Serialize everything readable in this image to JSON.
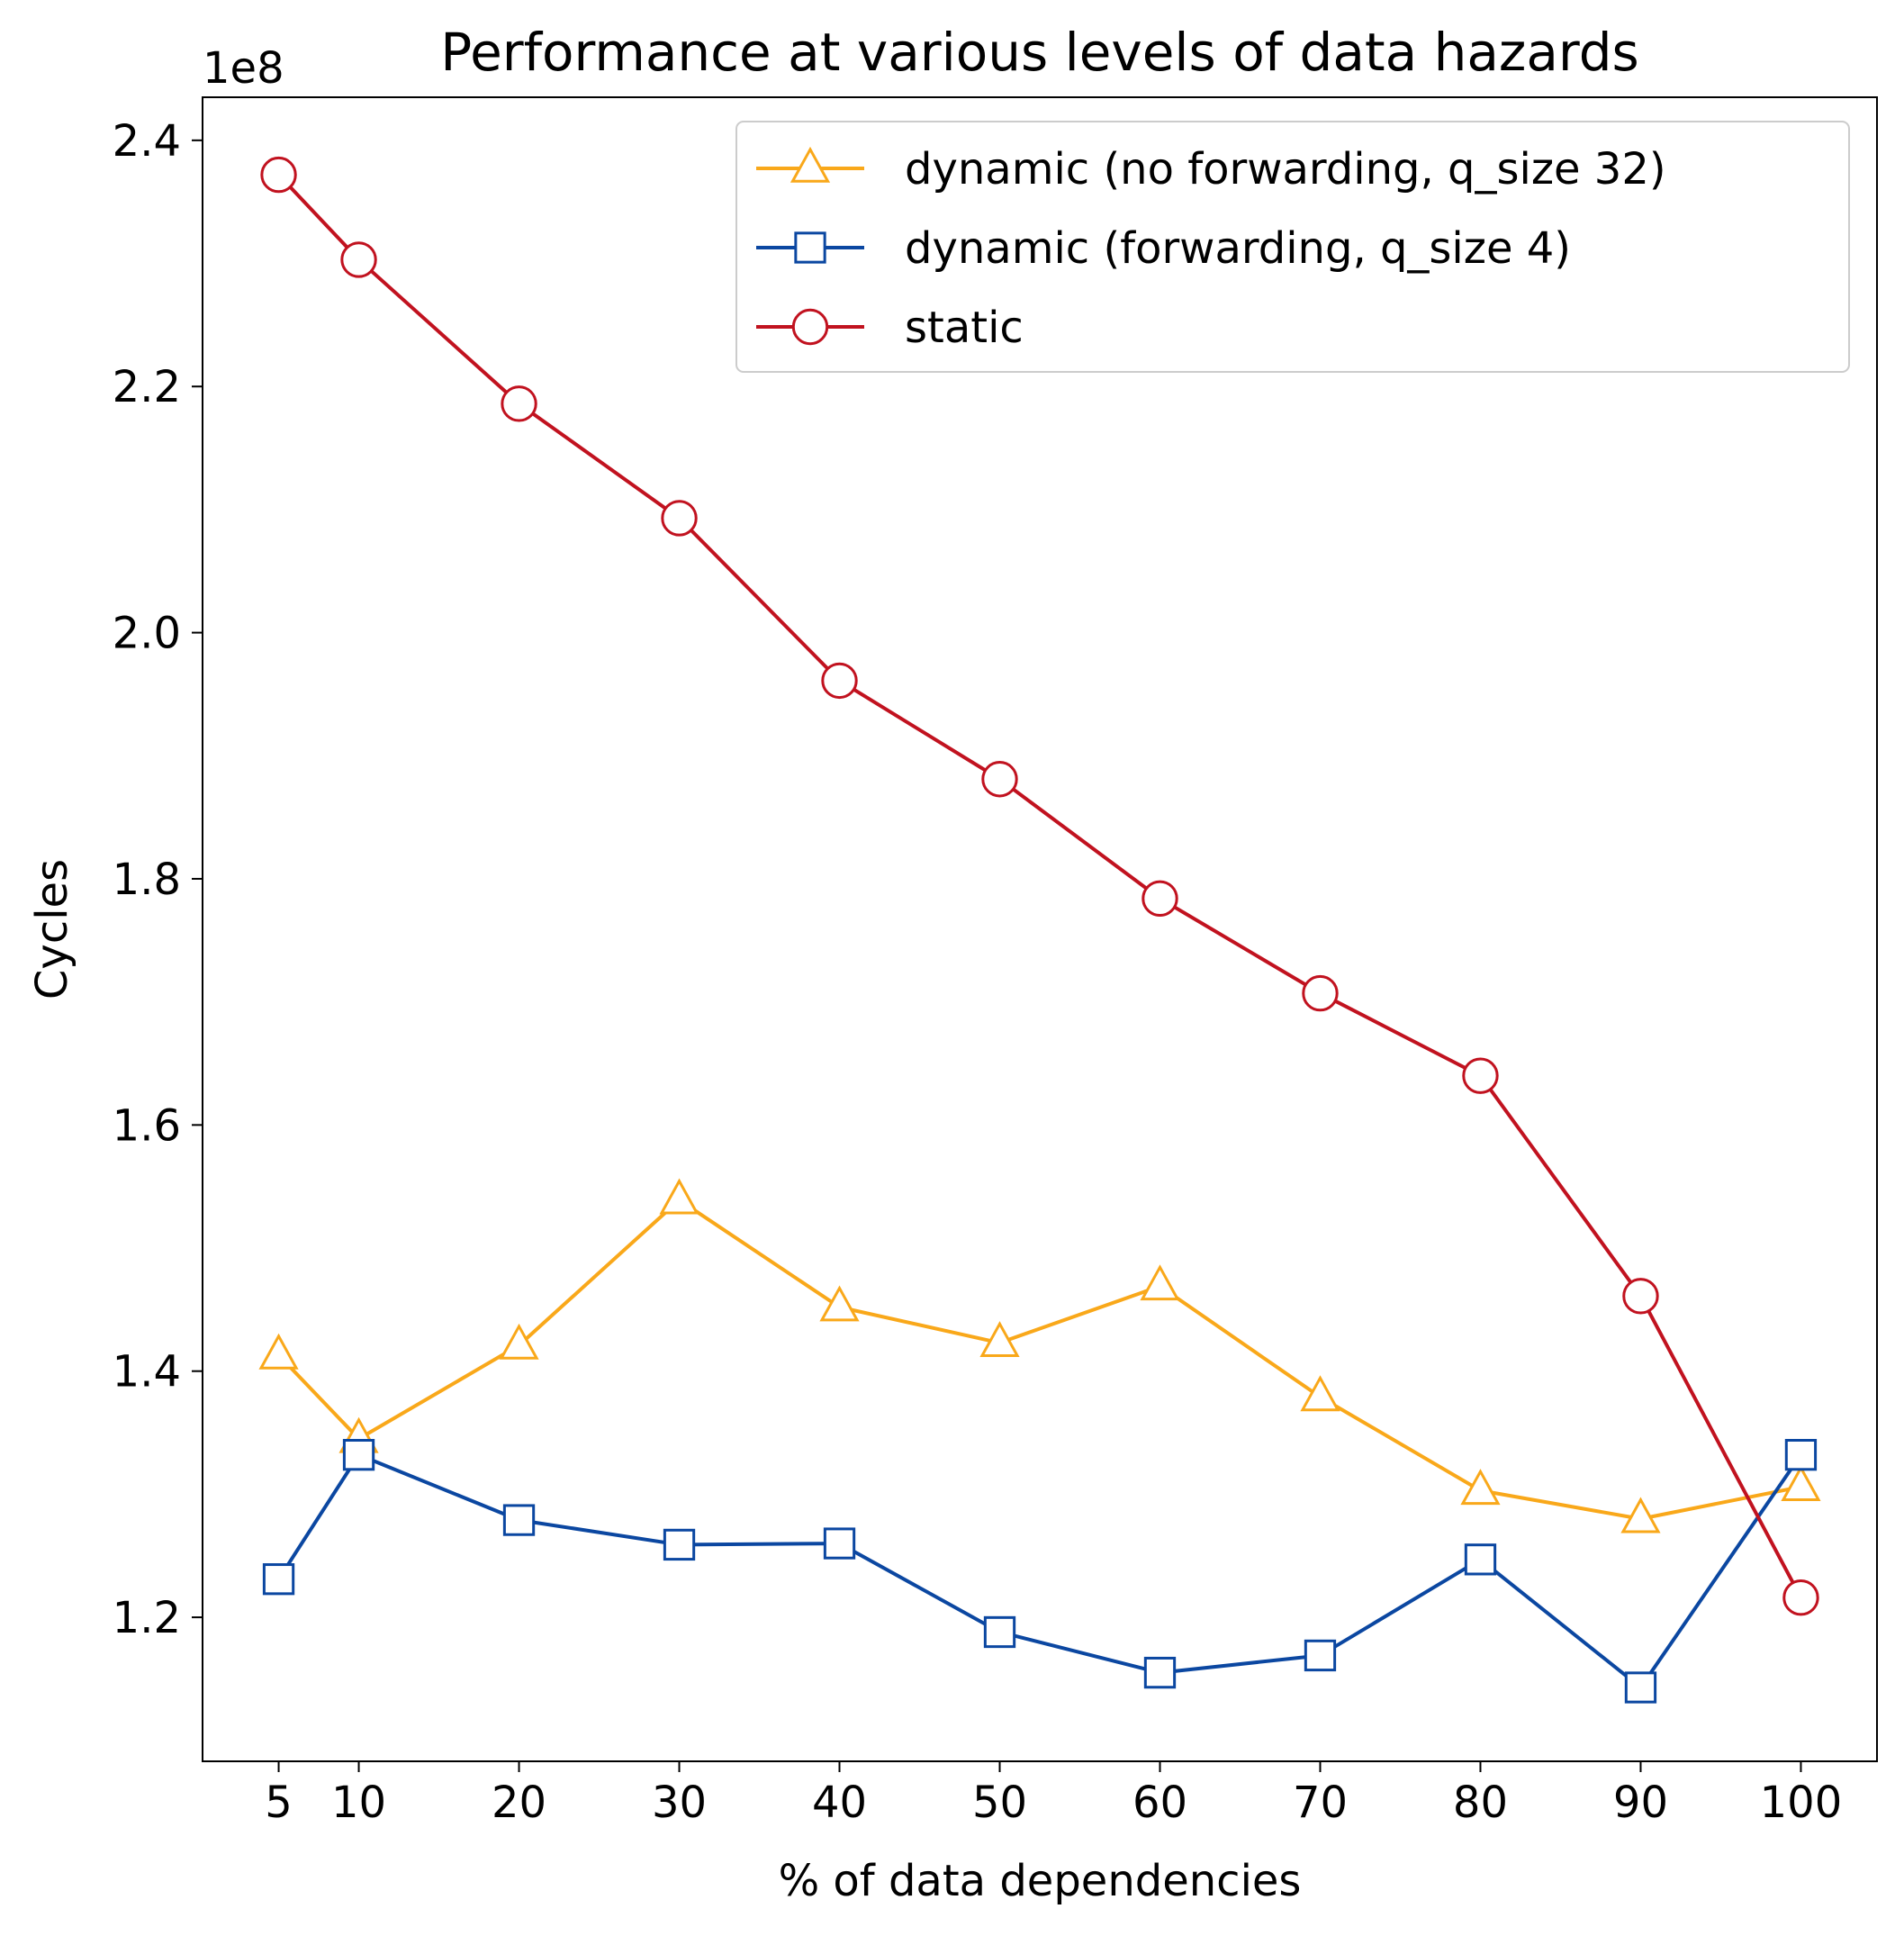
{
  "chart_data": {
    "type": "line",
    "title": "Performance at various levels of data hazards",
    "xlabel": "% of data dependencies",
    "ylabel": "Cycles",
    "y_offset_label": "1e8",
    "y_scale_factor": 100000000,
    "x": [
      5,
      10,
      20,
      30,
      40,
      50,
      60,
      70,
      80,
      90,
      100
    ],
    "x_tick_labels": [
      "5",
      "10",
      "20",
      "30",
      "40",
      "50",
      "60",
      "70",
      "80",
      "90",
      "100"
    ],
    "y_ticks": [
      1.2,
      1.4,
      1.6,
      1.8,
      2.0,
      2.2,
      2.4
    ],
    "y_tick_labels": [
      "1.2",
      "1.4",
      "1.6",
      "1.8",
      "2.0",
      "2.2",
      "2.4"
    ],
    "xlim": [
      0.25,
      104.75
    ],
    "ylim": [
      1.083,
      2.435
    ],
    "grid": false,
    "legend_position": "top-right",
    "series": [
      {
        "name": "dynamic (no forwarding, q_size 32)",
        "color": "#F9A81A",
        "marker": "triangle",
        "values": [
          1.413,
          1.345,
          1.421,
          1.539,
          1.452,
          1.423,
          1.469,
          1.379,
          1.303,
          1.28,
          1.306
        ]
      },
      {
        "name": "dynamic (forwarding, q_size 4)",
        "color": "#0B47A1",
        "marker": "square",
        "values": [
          1.231,
          1.332,
          1.279,
          1.259,
          1.26,
          1.188,
          1.155,
          1.169,
          1.247,
          1.143,
          1.332
        ]
      },
      {
        "name": "static",
        "color": "#C1121F",
        "marker": "circle",
        "values": [
          2.372,
          2.303,
          2.186,
          2.093,
          1.961,
          1.881,
          1.784,
          1.707,
          1.64,
          1.461,
          1.216
        ]
      }
    ]
  }
}
